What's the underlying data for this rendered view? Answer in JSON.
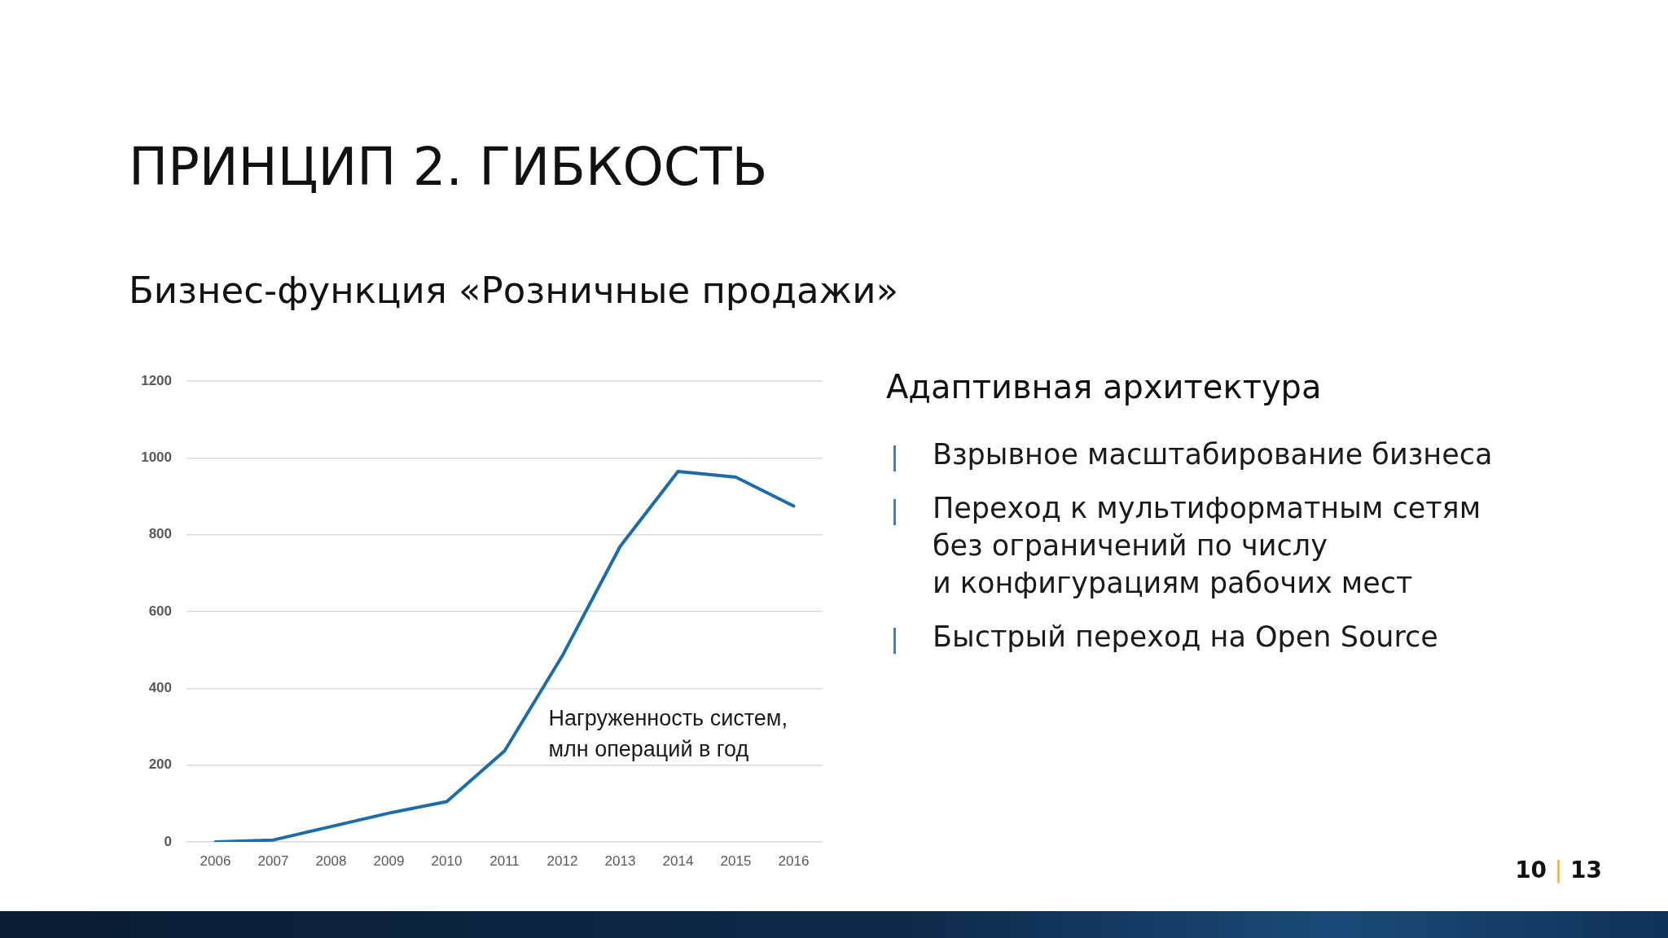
{
  "chart_data": [
    {
      "type": "line",
      "title": "ПРИНЦИП 2. ГИБКОСТЬ",
      "subtitle": "Бизнес-функция «Розничные продажи»",
      "categories": [
        "2006",
        "2007",
        "2008",
        "2009",
        "2010",
        "2011",
        "2012",
        "2013",
        "2014",
        "2015",
        "2016"
      ],
      "series": [
        {
          "name": "Нагруженность систем, млн операций в год",
          "color": "#1b6ca8",
          "values": [
            0,
            5,
            40,
            75,
            105,
            237,
            485,
            770,
            965,
            950,
            875
          ]
        }
      ],
      "ylim": [
        0,
        1200
      ],
      "yticks": [
        0,
        200,
        400,
        600,
        800,
        1000,
        1200
      ],
      "grid": "y",
      "legend": false,
      "marker": "none",
      "line_style": "solid"
    },
    {
      "type": "other",
      "title": "Адаптивная архитектура",
      "annotations": [
        "Взрывное масштабирование бизнеса",
        "Переход к мультиформатным сетям\nбез ограничений по числу\nи конфигурациям рабочих мест",
        "Быстрый переход на Open Source",
        "10 | 13"
      ]
    }
  ]
}
